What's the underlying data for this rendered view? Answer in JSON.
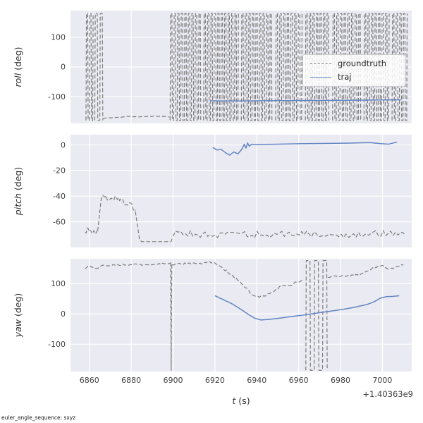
{
  "figure": {
    "footer_note": "euler_angle_sequence: sxyz",
    "offset_text": "+1.40363e9",
    "xlabel_var": "t",
    "xlabel_unit": " (s)",
    "colors": {
      "background": "#ffffff",
      "axes_bg": "#eaeaf2",
      "grid": "#ffffff",
      "groundtruth": "#7b7b7b",
      "traj": "#6285c4",
      "tick_label": "#404040",
      "label": "#303030"
    },
    "legend": {
      "position": "center-right-of-top-subplot",
      "entries": [
        {
          "label": "groundtruth",
          "style": "dashed",
          "color_key": "groundtruth"
        },
        {
          "label": "traj",
          "style": "solid",
          "color_key": "traj"
        }
      ]
    }
  },
  "chart_data": [
    {
      "id": "roll",
      "type": "line",
      "ylabel_var": "roll",
      "ylabel_unit": " (deg)",
      "xlim": [
        6851,
        7014
      ],
      "ylim": [
        -190,
        190
      ],
      "xticks": [
        6860,
        6880,
        6900,
        6920,
        6940,
        6960,
        6980,
        7000
      ],
      "yticks": [
        -100,
        0,
        100
      ],
      "show_xticklabels": false,
      "grid": true,
      "series": [
        {
          "name": "groundtruth",
          "style": "dashed",
          "color_key": "groundtruth",
          "segments": [
            {
              "wrap": {
                "x0": 6858.4,
                "x1": 6861.6,
                "n": 5,
                "ylo": -180,
                "yhi": 180
              }
            },
            {
              "wrap": {
                "x0": 6862.6,
                "x1": 6866.2,
                "n": 4,
                "ylo": -180,
                "yhi": 180
              }
            },
            {
              "noisy": {
                "points": [
                  [
                    6866.5,
                    -173
                  ],
                  [
                    6871,
                    -171
                  ],
                  [
                    6875,
                    -169
                  ],
                  [
                    6877.5,
                    -166
                  ],
                  [
                    6881,
                    -168
                  ],
                  [
                    6886,
                    -167
                  ],
                  [
                    6891,
                    -166
                  ],
                  [
                    6896,
                    -166
                  ],
                  [
                    6898.3,
                    -168
                  ]
                ],
                "n": 42,
                "amp": 0.8,
                "seed": 11
              }
            },
            {
              "wrap": {
                "x0": 6898.6,
                "x1": 6913.0,
                "n": 18,
                "ylo": -180,
                "yhi": 180
              }
            },
            {
              "wrap": {
                "x0": 6914.6,
                "x1": 6931.0,
                "n": 21,
                "ylo": -180,
                "yhi": 180
              }
            },
            {
              "wrap": {
                "x0": 6932.6,
                "x1": 6947.0,
                "n": 18,
                "ylo": -180,
                "yhi": 180
              }
            },
            {
              "wrap": {
                "x0": 6949.0,
                "x1": 6961.4,
                "n": 15,
                "ylo": -180,
                "yhi": 180
              }
            },
            {
              "wrap": {
                "x0": 6963.2,
                "x1": 6974.2,
                "n": 14,
                "ylo": -180,
                "yhi": 180
              }
            },
            {
              "wrap": {
                "x0": 6976.2,
                "x1": 6989.4,
                "n": 16,
                "ylo": -180,
                "yhi": 180
              }
            },
            {
              "wrap": {
                "x0": 6991.2,
                "x1": 7003.0,
                "n": 15,
                "ylo": -180,
                "yhi": 180
              }
            },
            {
              "wrap": {
                "x0": 7004.6,
                "x1": 7011.6,
                "n": 9,
                "ylo": -180,
                "yhi": 180
              }
            }
          ]
        },
        {
          "name": "traj",
          "style": "solid",
          "color_key": "traj",
          "segments": [
            {
              "points": [
                [
                  6918,
                  -114
                ],
                [
                  6928,
                  -114.5
                ],
                [
                  6940,
                  -114
                ],
                [
                  6952,
                  -113.5
                ],
                [
                  6964,
                  -113
                ],
                [
                  6976,
                  -112.5
                ],
                [
                  6988,
                  -112
                ],
                [
                  7000,
                  -111
                ],
                [
                  7009,
                  -110.5
                ]
              ]
            }
          ]
        }
      ]
    },
    {
      "id": "pitch",
      "type": "line",
      "ylabel_var": "pitch",
      "ylabel_unit": " (deg)",
      "xlim": [
        6851,
        7014
      ],
      "ylim": [
        -80,
        8
      ],
      "xticks": [
        6860,
        6880,
        6900,
        6920,
        6940,
        6960,
        6980,
        7000
      ],
      "yticks": [
        -60,
        -40,
        -20,
        0
      ],
      "show_xticklabels": false,
      "grid": true,
      "series": [
        {
          "name": "groundtruth",
          "style": "dashed",
          "color_key": "groundtruth",
          "segments": [
            {
              "noisy": {
                "points": [
                  [
                    6858,
                    -67
                  ],
                  [
                    6860,
                    -66
                  ],
                  [
                    6862,
                    -68
                  ],
                  [
                    6864,
                    -67
                  ]
                ],
                "n": 14,
                "amp": 2.6,
                "seed": 21
              }
            },
            {
              "points": [
                [
                  6864,
                  -67
                ],
                [
                  6864.8,
                  -55
                ],
                [
                  6865.6,
                  -43
                ],
                [
                  6866.4,
                  -39
                ]
              ]
            },
            {
              "noisy": {
                "points": [
                  [
                    6866.4,
                    -39
                  ],
                  [
                    6869,
                    -42
                  ],
                  [
                    6872,
                    -41
                  ],
                  [
                    6875,
                    -43
                  ],
                  [
                    6877,
                    -46
                  ],
                  [
                    6879,
                    -45
                  ],
                  [
                    6881,
                    -49
                  ],
                  [
                    6882,
                    -52
                  ]
                ],
                "n": 30,
                "amp": 1.8,
                "seed": 22
              }
            },
            {
              "points": [
                [
                  6882,
                  -52
                ],
                [
                  6883,
                  -63
                ],
                [
                  6884,
                  -74
                ],
                [
                  6885,
                  -75.5
                ],
                [
                  6890,
                  -75.5
                ],
                [
                  6895,
                  -75.5
                ],
                [
                  6899,
                  -75.5
                ],
                [
                  6899.6,
                  -73
                ]
              ]
            },
            {
              "noisy": {
                "points": [
                  [
                    6900,
                    -69
                  ],
                  [
                    6920,
                    -70
                  ],
                  [
                    6940,
                    -70
                  ],
                  [
                    6960,
                    -69
                  ],
                  [
                    6980,
                    -70
                  ],
                  [
                    7000,
                    -69
                  ],
                  [
                    7011,
                    -68
                  ]
                ],
                "n": 95,
                "amp": 2.6,
                "seed": 23
              }
            }
          ]
        },
        {
          "name": "traj",
          "style": "solid",
          "color_key": "traj",
          "segments": [
            {
              "points": [
                [
                  6919,
                  -2
                ],
                [
                  6921,
                  -4
                ],
                [
                  6923,
                  -3.5
                ],
                [
                  6925,
                  -6
                ],
                [
                  6927,
                  -8
                ],
                [
                  6929,
                  -5.5
                ],
                [
                  6931,
                  -7
                ],
                [
                  6933,
                  -3
                ],
                [
                  6934,
                  0.5
                ],
                [
                  6934.8,
                  -2.5
                ],
                [
                  6935.6,
                  1.5
                ],
                [
                  6936.4,
                  -1
                ],
                [
                  6937.5,
                  0.5
                ],
                [
                  6940,
                  0.3
                ],
                [
                  6950,
                  0.6
                ],
                [
                  6960,
                  0.9
                ],
                [
                  6972,
                  1.1
                ],
                [
                  6984,
                  1.4
                ],
                [
                  6994,
                  1.8
                ],
                [
                  6999,
                  1
                ],
                [
                  7003,
                  0.6
                ],
                [
                  7007,
                  2.2
                ]
              ]
            }
          ]
        }
      ]
    },
    {
      "id": "yaw",
      "type": "line",
      "ylabel_var": "yaw",
      "ylabel_unit": " (deg)",
      "xlim": [
        6851,
        7014
      ],
      "ylim": [
        -190,
        182
      ],
      "xticks": [
        6860,
        6880,
        6900,
        6920,
        6940,
        6960,
        6980,
        7000
      ],
      "yticks": [
        -100,
        0,
        100
      ],
      "show_xticklabels": true,
      "grid": true,
      "series": [
        {
          "name": "groundtruth",
          "style": "dashed",
          "color_key": "groundtruth",
          "segments": [
            {
              "noisy": {
                "points": [
                  [
                    6858,
                    150
                  ],
                  [
                    6860,
                    158
                  ],
                  [
                    6863,
                    148
                  ],
                  [
                    6866,
                    158
                  ],
                  [
                    6870,
                    160
                  ],
                  [
                    6874,
                    162
                  ],
                  [
                    6879,
                    162
                  ],
                  [
                    6884,
                    163
                  ],
                  [
                    6890,
                    163
                  ],
                  [
                    6896,
                    167
                  ],
                  [
                    6898.6,
                    169
                  ]
                ],
                "n": 55,
                "amp": 2.5,
                "seed": 31
              }
            },
            {
              "points": [
                [
                  6898.8,
                  170
                ],
                [
                  6899.1,
                  -186
                ],
                [
                  6899.4,
                  170
                ]
              ]
            },
            {
              "noisy": {
                "points": [
                  [
                    6899.6,
                    164
                  ],
                  [
                    6904,
                    165
                  ],
                  [
                    6909,
                    166
                  ],
                  [
                    6913,
                    167
                  ],
                  [
                    6917,
                    171
                  ],
                  [
                    6920,
                    167
                  ],
                  [
                    6923,
                    155
                  ],
                  [
                    6926,
                    140
                  ],
                  [
                    6929,
                    124
                  ],
                  [
                    6932,
                    104
                  ],
                  [
                    6935,
                    86
                  ],
                  [
                    6938,
                    62
                  ],
                  [
                    6941,
                    56
                  ],
                  [
                    6944,
                    60
                  ],
                  [
                    6947,
                    72
                  ],
                  [
                    6950,
                    85
                  ],
                  [
                    6953,
                    95
                  ],
                  [
                    6956,
                    90
                  ],
                  [
                    6959,
                    106
                  ],
                  [
                    6962,
                    112
                  ]
                ],
                "n": 85,
                "amp": 3.5,
                "seed": 32
              }
            },
            {
              "wrap": {
                "x0": 6963.4,
                "x1": 6973.4,
                "n": 6,
                "ylo": -186,
                "yhi": 176
              }
            },
            {
              "noisy": {
                "points": [
                  [
                    6974,
                    120
                  ],
                  [
                    6977,
                    124
                  ],
                  [
                    6980,
                    123
                  ],
                  [
                    6983,
                    127
                  ],
                  [
                    6986,
                    126
                  ],
                  [
                    6989,
                    131
                  ],
                  [
                    6992,
                    138
                  ],
                  [
                    6995,
                    150
                  ],
                  [
                    6998,
                    157
                  ],
                  [
                    7000,
                    160
                  ],
                  [
                    7002,
                    149
                  ],
                  [
                    7004,
                    148
                  ],
                  [
                    7007,
                    157
                  ],
                  [
                    7010,
                    162
                  ]
                ],
                "n": 55,
                "amp": 2.5,
                "seed": 33
              }
            }
          ]
        },
        {
          "name": "traj",
          "style": "solid",
          "color_key": "traj",
          "segments": [
            {
              "points": [
                [
                  6920,
                  60
                ],
                [
                  6924,
                  47
                ],
                [
                  6928,
                  34
                ],
                [
                  6932,
                  17
                ],
                [
                  6936,
                  -2
                ],
                [
                  6939,
                  -14
                ],
                [
                  6942,
                  -20
                ],
                [
                  6946,
                  -18
                ],
                [
                  6951,
                  -14
                ],
                [
                  6956,
                  -9
                ],
                [
                  6961,
                  -5
                ],
                [
                  6966,
                  0
                ],
                [
                  6971,
                  5
                ],
                [
                  6976,
                  10
                ],
                [
                  6981,
                  15
                ],
                [
                  6986,
                  21
                ],
                [
                  6990,
                  27
                ],
                [
                  6993,
                  32
                ],
                [
                  6996,
                  40
                ],
                [
                  6999,
                  52
                ],
                [
                  7002,
                  57
                ],
                [
                  7005,
                  58
                ],
                [
                  7008,
                  60
                ]
              ]
            }
          ]
        }
      ]
    }
  ]
}
